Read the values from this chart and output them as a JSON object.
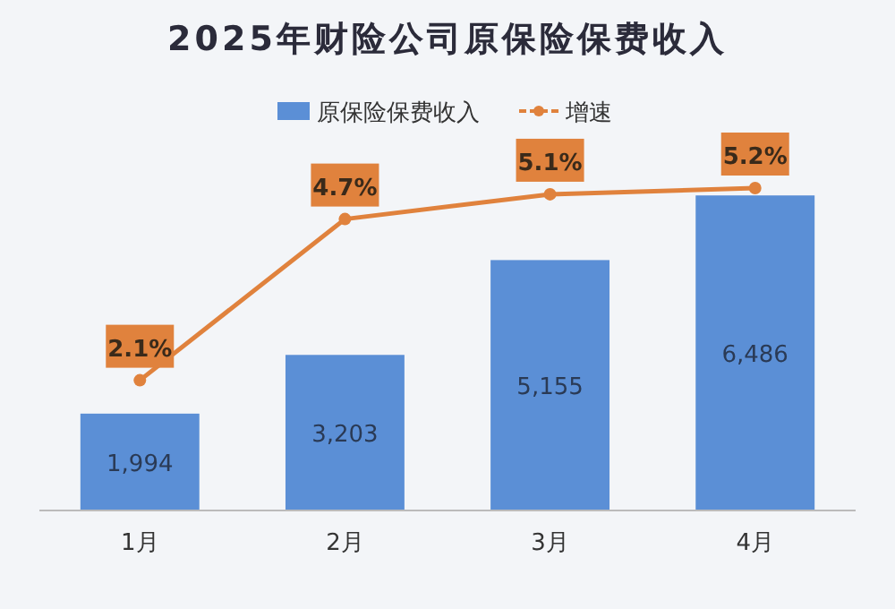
{
  "chart_data": {
    "type": "bar",
    "title": "2025年财险公司原保险保费收入",
    "categories": [
      "1月",
      "2月",
      "3月",
      "4月"
    ],
    "legend": "top",
    "series": [
      {
        "name": "原保险保费收入",
        "color": "#5b8fd6",
        "values": [
          1994,
          3203,
          5155,
          6486
        ],
        "value_labels": [
          "1,994",
          "3,203",
          "5,155",
          "6,486"
        ]
      },
      {
        "name": "增速",
        "type": "line",
        "axis": "y2",
        "color": "#e0823d",
        "marker": "circle",
        "values": [
          2.1,
          4.7,
          5.1,
          5.2
        ],
        "value_labels": [
          "2.1%",
          "4.7%",
          "5.1%",
          "5.2%"
        ]
      }
    ]
  }
}
